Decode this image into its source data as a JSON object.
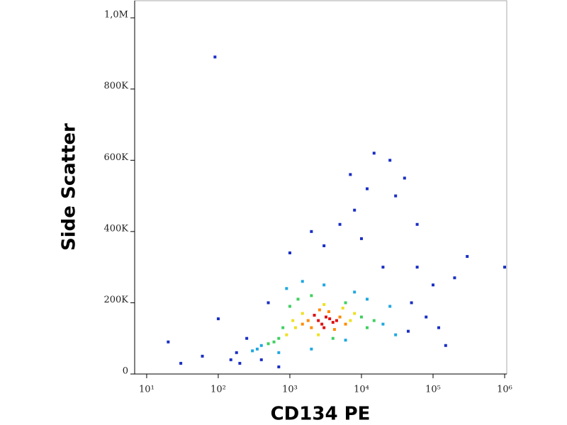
{
  "chart_data": {
    "type": "scatter",
    "xlabel": "CD134 PE",
    "ylabel": "Side Scatter",
    "xlog": true,
    "xlim": [
      6.8,
      1070000
    ],
    "ylim": [
      0,
      1048000
    ],
    "xticks": [
      {
        "value": 10,
        "label": "10¹"
      },
      {
        "value": 100,
        "label": "10²"
      },
      {
        "value": 1000,
        "label": "10³"
      },
      {
        "value": 10000,
        "label": "10⁴"
      },
      {
        "value": 100000,
        "label": "10⁵"
      },
      {
        "value": 1000000,
        "label": "10⁶"
      }
    ],
    "yticks": [
      0,
      {
        "value": 200000,
        "label": "200K"
      },
      {
        "value": 400000,
        "label": "400K"
      },
      {
        "value": 600000,
        "label": "600K"
      },
      {
        "value": 800000,
        "label": "800K"
      },
      {
        "value": 1000000,
        "label": "1,0M"
      }
    ],
    "layers": [
      {
        "color": "#1a2fc4",
        "x": [
          200,
          150,
          100,
          50000,
          80000,
          100000,
          20000,
          10000,
          5000,
          30000,
          25000,
          15000,
          40000,
          200000,
          300000,
          60000,
          120000,
          90,
          20,
          30,
          1000,
          2000,
          60,
          700,
          1000000,
          150000,
          500,
          250,
          3000,
          8000,
          400,
          180,
          60000,
          45000,
          12000,
          7000
        ],
        "y": [
          30000,
          40000,
          155000,
          200000,
          160000,
          250000,
          300000,
          380000,
          420000,
          500000,
          600000,
          620000,
          550000,
          270000,
          330000,
          420000,
          130000,
          890000,
          90000,
          30000,
          340000,
          400000,
          50000,
          20000,
          300000,
          80000,
          200000,
          100000,
          360000,
          460000,
          40000,
          60000,
          300000,
          120000,
          520000,
          560000
        ]
      },
      {
        "color": "#1fa8e0",
        "x": [
          400,
          350,
          20000,
          900,
          1500,
          25000,
          3000,
          8000,
          6000,
          300,
          30000,
          700,
          12000,
          2000
        ],
        "y": [
          80000,
          70000,
          140000,
          240000,
          260000,
          190000,
          250000,
          230000,
          95000,
          65000,
          110000,
          60000,
          210000,
          70000
        ]
      },
      {
        "color": "#3fd060",
        "x": [
          700,
          600,
          10000,
          1000,
          1300,
          12000,
          500,
          2000,
          6000,
          4000,
          15000,
          800
        ],
        "y": [
          100000,
          90000,
          160000,
          190000,
          210000,
          130000,
          85000,
          220000,
          200000,
          100000,
          150000,
          130000
        ]
      },
      {
        "color": "#eee020",
        "x": [
          1200,
          7000,
          1500,
          900,
          8000,
          2500,
          5500,
          1100,
          3000
        ],
        "y": [
          130000,
          150000,
          170000,
          110000,
          170000,
          110000,
          185000,
          150000,
          195000
        ]
      },
      {
        "color": "#ff8c00",
        "x": [
          1800,
          5000,
          2000,
          3500,
          6000,
          1500,
          2600,
          4200
        ],
        "y": [
          150000,
          160000,
          130000,
          175000,
          140000,
          140000,
          180000,
          125000
        ]
      },
      {
        "color": "#e01010",
        "x": [
          2500,
          3200,
          4000,
          2800,
          3600,
          2200,
          4500,
          3000
        ],
        "y": [
          150000,
          160000,
          145000,
          140000,
          155000,
          165000,
          150000,
          130000
        ]
      }
    ]
  }
}
